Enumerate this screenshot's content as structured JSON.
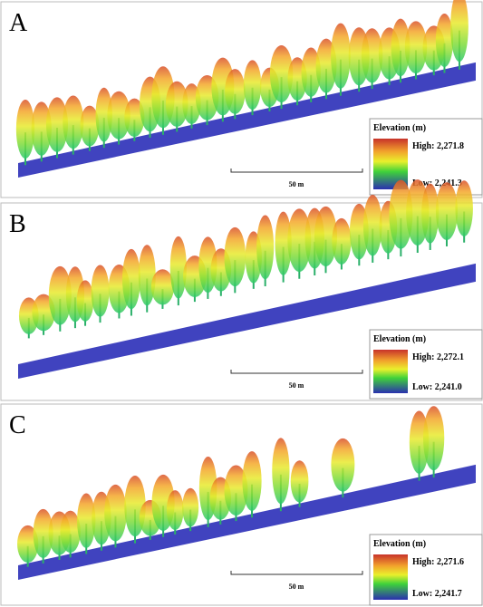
{
  "panels": [
    {
      "label": "A",
      "legend": {
        "title": "Elevation (m)",
        "high": "High: 2,271.8",
        "low": "Low: 2,241.3"
      },
      "scale": "50 m"
    },
    {
      "label": "B",
      "legend": {
        "title": "Elevation (m)",
        "high": "High: 2,272.1",
        "low": "Low: 2,241.0"
      },
      "scale": "50 m"
    },
    {
      "label": "C",
      "legend": {
        "title": "Elevation (m)",
        "high": "High: 2,271.6",
        "low": "Low: 2,241.7"
      },
      "scale": "50 m"
    }
  ]
}
